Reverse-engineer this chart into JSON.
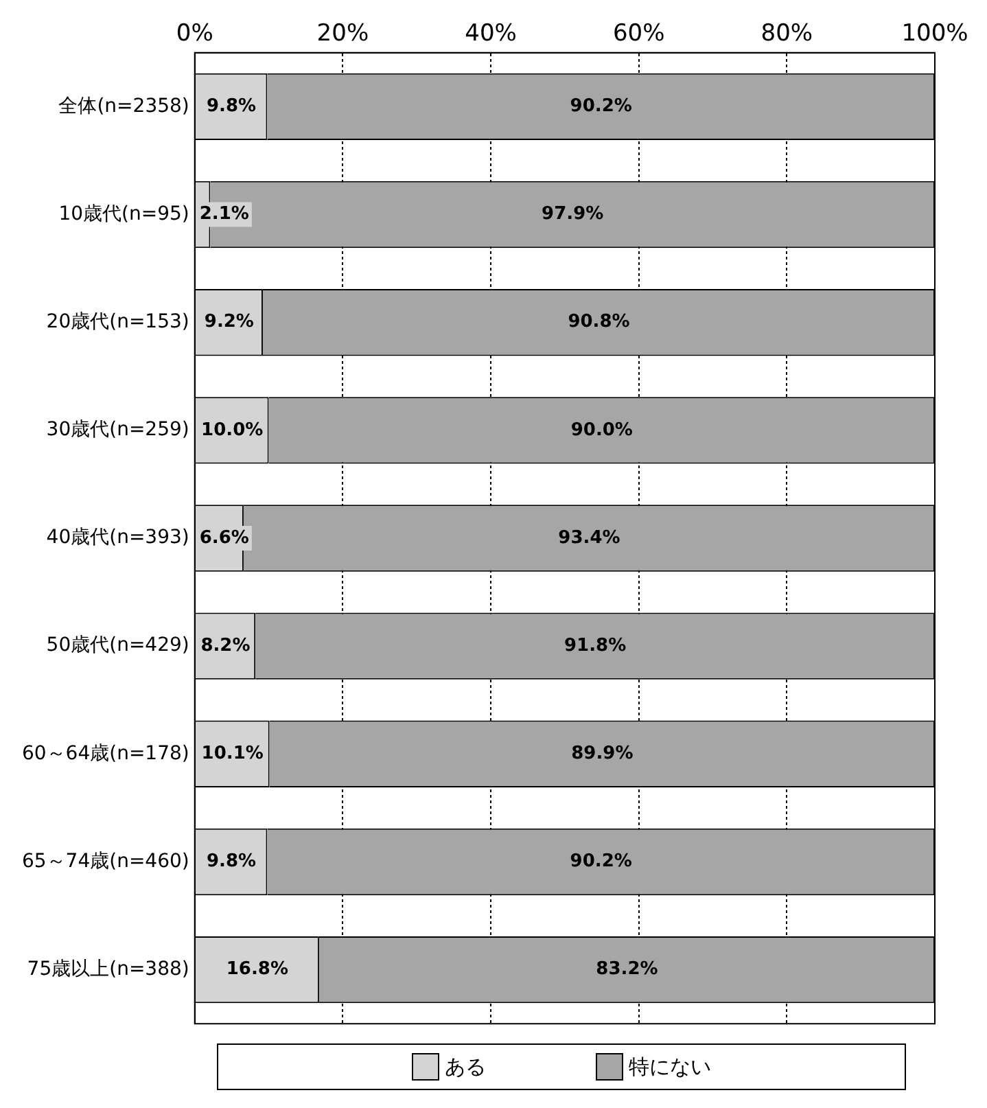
{
  "chart_data": {
    "type": "bar",
    "orientation": "horizontal",
    "stacked": true,
    "categories": [
      "全体(n=2358)",
      "10歳代(n=95)",
      "20歳代(n=153)",
      "30歳代(n=259)",
      "40歳代(n=393)",
      "50歳代(n=429)",
      "60～64歳(n=178)",
      "65～74歳(n=460)",
      "75歳以上(n=388)"
    ],
    "series": [
      {
        "name": "ある",
        "color": "#d4d4d4",
        "values": [
          9.8,
          2.1,
          9.2,
          10.0,
          6.6,
          8.2,
          10.1,
          9.8,
          16.8
        ],
        "value_labels": [
          "9.8%",
          "2.1%",
          "9.2%",
          "10.0%",
          "6.6%",
          "8.2%",
          "10.1%",
          "9.8%",
          "16.8%"
        ]
      },
      {
        "name": "特にない",
        "color": "#a6a6a6",
        "values": [
          90.2,
          97.9,
          90.8,
          90.0,
          93.4,
          91.8,
          89.9,
          90.2,
          83.2
        ],
        "value_labels": [
          "90.2%",
          "97.9%",
          "90.8%",
          "90.0%",
          "93.4%",
          "91.8%",
          "89.9%",
          "90.2%",
          "83.2%"
        ]
      }
    ],
    "xlim": [
      0,
      100
    ],
    "xticks": [
      {
        "value": 0,
        "label": "0%"
      },
      {
        "value": 20,
        "label": "20%"
      },
      {
        "value": 40,
        "label": "40%"
      },
      {
        "value": 60,
        "label": "60%"
      },
      {
        "value": 80,
        "label": "80%"
      },
      {
        "value": 100,
        "label": "100%"
      }
    ],
    "grid": "x",
    "legend": "bottom"
  }
}
